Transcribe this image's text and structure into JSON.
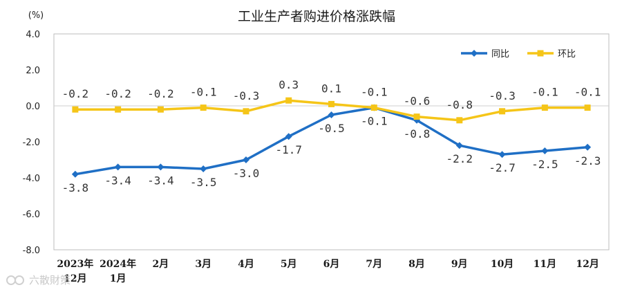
{
  "chart_data": {
    "type": "line",
    "title": "工业生产者购进价格涨跌幅",
    "unit_label": "(%)",
    "categories": [
      [
        "2023年",
        "12月"
      ],
      [
        "2024年",
        "1月"
      ],
      [
        "2月"
      ],
      [
        "3月"
      ],
      [
        "4月"
      ],
      [
        "5月"
      ],
      [
        "6月"
      ],
      [
        "7月"
      ],
      [
        "8月"
      ],
      [
        "9月"
      ],
      [
        "10月"
      ],
      [
        "11月"
      ],
      [
        "12月"
      ]
    ],
    "ylim": [
      -8.0,
      4.0
    ],
    "yticks": [
      "4.0",
      "2.0",
      "0.0",
      "-2.0",
      "-4.0",
      "-6.0",
      "-8.0"
    ],
    "grid": "y-zero-line",
    "legend_position": "top-right",
    "series": [
      {
        "name": "同比",
        "color": "#1f6fc5",
        "marker": "diamond",
        "values": [
          -3.8,
          -3.4,
          -3.4,
          -3.5,
          -3.0,
          -1.7,
          -0.5,
          -0.1,
          -0.8,
          -2.2,
          -2.7,
          -2.5,
          -2.3
        ],
        "labels": [
          "-3.8",
          "-3.4",
          "-3.4",
          "-3.5",
          "-3.0",
          "-1.7",
          "-0.5",
          "-0.1",
          "-0.8",
          "-2.2",
          "-2.7",
          "-2.5",
          "-2.3"
        ]
      },
      {
        "name": "环比",
        "color": "#f5c518",
        "marker": "square",
        "values": [
          -0.2,
          -0.2,
          -0.2,
          -0.1,
          -0.3,
          0.3,
          0.1,
          -0.1,
          -0.6,
          -0.8,
          -0.3,
          -0.1,
          -0.1
        ],
        "labels": [
          "-0.2",
          "-0.2",
          "-0.2",
          "-0.1",
          "-0.3",
          "0.3",
          "0.1",
          "-0.1",
          "-0.6",
          "-0.8",
          "-0.3",
          "-0.1",
          "-0.1"
        ]
      }
    ]
  },
  "watermark": "六散財策"
}
